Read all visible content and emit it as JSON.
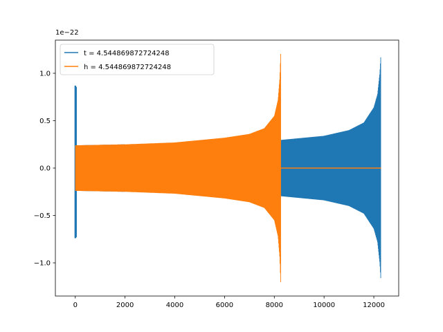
{
  "chart_data": {
    "type": "line",
    "title": "",
    "xlabel": "",
    "ylabel": "",
    "xlim": [
      -800,
      13000
    ],
    "ylim": [
      -1.35,
      1.35
    ],
    "y_offset_text": "1e−22",
    "x_ticks": [
      0,
      2000,
      4000,
      6000,
      8000,
      10000,
      12000
    ],
    "x_tick_labels": [
      "0",
      "2000",
      "4000",
      "6000",
      "8000",
      "10000",
      "12000"
    ],
    "y_ticks": [
      -1.0,
      -0.5,
      0.0,
      0.5,
      1.0
    ],
    "y_tick_labels": [
      "−1.0",
      "−0.5",
      "0.0",
      "0.5",
      "1.0"
    ],
    "grid": false,
    "legend_position": "top-left",
    "series": [
      {
        "name": "t = 4.544869872724248",
        "color": "#1f77b4",
        "x": [
          0,
          12290
        ],
        "envelope_x": [
          0,
          2000,
          4000,
          6000,
          8000,
          10000,
          11000,
          11600,
          12000,
          12150,
          12240,
          12290
        ],
        "envelope_upper": [
          0.87,
          0.24,
          0.25,
          0.27,
          0.29,
          0.34,
          0.4,
          0.48,
          0.64,
          0.78,
          1.0,
          1.23
        ],
        "envelope_lower": [
          -0.74,
          -0.24,
          -0.25,
          -0.27,
          -0.29,
          -0.34,
          -0.4,
          -0.48,
          -0.64,
          -0.78,
          -1.0,
          -1.22
        ]
      },
      {
        "name": "h = 4.544869872724248",
        "color": "#ff7f0e",
        "x": [
          0,
          12290
        ],
        "envelope_x": [
          0,
          2000,
          4000,
          6000,
          7000,
          7600,
          8000,
          8150,
          8220,
          8260
        ],
        "envelope_upper": [
          0.24,
          0.25,
          0.27,
          0.32,
          0.36,
          0.42,
          0.55,
          0.72,
          0.95,
          1.23
        ],
        "envelope_lower": [
          -0.24,
          -0.25,
          -0.27,
          -0.32,
          -0.36,
          -0.42,
          -0.55,
          -0.72,
          -0.95,
          -1.23
        ],
        "flat_after_x": 8260,
        "flat_value": 0.0
      }
    ]
  }
}
